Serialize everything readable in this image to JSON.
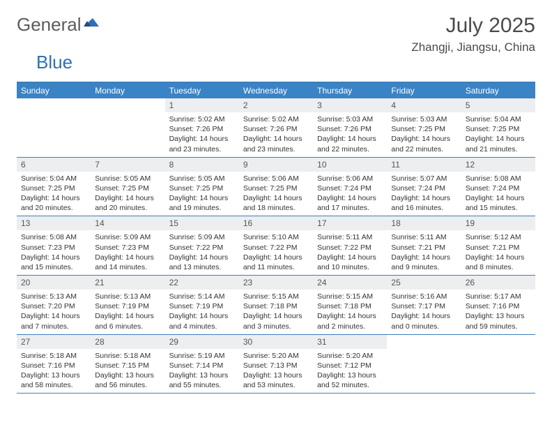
{
  "logo": {
    "word1": "General",
    "word2": "Blue"
  },
  "title": "July 2025",
  "location": "Zhangji, Jiangsu, China",
  "colors": {
    "header_bg": "#3a83c5",
    "header_text": "#ffffff",
    "border": "#3a7fbd",
    "daynum_bg": "#eceef0",
    "text": "#333333",
    "logo_gray": "#5c5c5c",
    "logo_blue": "#2f6fb3"
  },
  "days_of_week": [
    "Sunday",
    "Monday",
    "Tuesday",
    "Wednesday",
    "Thursday",
    "Friday",
    "Saturday"
  ],
  "weeks": [
    [
      {
        "n": "",
        "empty": true
      },
      {
        "n": "",
        "empty": true
      },
      {
        "n": "1",
        "sr": "5:02 AM",
        "ss": "7:26 PM",
        "dl": "14 hours and 23 minutes."
      },
      {
        "n": "2",
        "sr": "5:02 AM",
        "ss": "7:26 PM",
        "dl": "14 hours and 23 minutes."
      },
      {
        "n": "3",
        "sr": "5:03 AM",
        "ss": "7:26 PM",
        "dl": "14 hours and 22 minutes."
      },
      {
        "n": "4",
        "sr": "5:03 AM",
        "ss": "7:25 PM",
        "dl": "14 hours and 22 minutes."
      },
      {
        "n": "5",
        "sr": "5:04 AM",
        "ss": "7:25 PM",
        "dl": "14 hours and 21 minutes."
      }
    ],
    [
      {
        "n": "6",
        "sr": "5:04 AM",
        "ss": "7:25 PM",
        "dl": "14 hours and 20 minutes."
      },
      {
        "n": "7",
        "sr": "5:05 AM",
        "ss": "7:25 PM",
        "dl": "14 hours and 20 minutes."
      },
      {
        "n": "8",
        "sr": "5:05 AM",
        "ss": "7:25 PM",
        "dl": "14 hours and 19 minutes."
      },
      {
        "n": "9",
        "sr": "5:06 AM",
        "ss": "7:25 PM",
        "dl": "14 hours and 18 minutes."
      },
      {
        "n": "10",
        "sr": "5:06 AM",
        "ss": "7:24 PM",
        "dl": "14 hours and 17 minutes."
      },
      {
        "n": "11",
        "sr": "5:07 AM",
        "ss": "7:24 PM",
        "dl": "14 hours and 16 minutes."
      },
      {
        "n": "12",
        "sr": "5:08 AM",
        "ss": "7:24 PM",
        "dl": "14 hours and 15 minutes."
      }
    ],
    [
      {
        "n": "13",
        "sr": "5:08 AM",
        "ss": "7:23 PM",
        "dl": "14 hours and 15 minutes."
      },
      {
        "n": "14",
        "sr": "5:09 AM",
        "ss": "7:23 PM",
        "dl": "14 hours and 14 minutes."
      },
      {
        "n": "15",
        "sr": "5:09 AM",
        "ss": "7:22 PM",
        "dl": "14 hours and 13 minutes."
      },
      {
        "n": "16",
        "sr": "5:10 AM",
        "ss": "7:22 PM",
        "dl": "14 hours and 11 minutes."
      },
      {
        "n": "17",
        "sr": "5:11 AM",
        "ss": "7:22 PM",
        "dl": "14 hours and 10 minutes."
      },
      {
        "n": "18",
        "sr": "5:11 AM",
        "ss": "7:21 PM",
        "dl": "14 hours and 9 minutes."
      },
      {
        "n": "19",
        "sr": "5:12 AM",
        "ss": "7:21 PM",
        "dl": "14 hours and 8 minutes."
      }
    ],
    [
      {
        "n": "20",
        "sr": "5:13 AM",
        "ss": "7:20 PM",
        "dl": "14 hours and 7 minutes."
      },
      {
        "n": "21",
        "sr": "5:13 AM",
        "ss": "7:19 PM",
        "dl": "14 hours and 6 minutes."
      },
      {
        "n": "22",
        "sr": "5:14 AM",
        "ss": "7:19 PM",
        "dl": "14 hours and 4 minutes."
      },
      {
        "n": "23",
        "sr": "5:15 AM",
        "ss": "7:18 PM",
        "dl": "14 hours and 3 minutes."
      },
      {
        "n": "24",
        "sr": "5:15 AM",
        "ss": "7:18 PM",
        "dl": "14 hours and 2 minutes."
      },
      {
        "n": "25",
        "sr": "5:16 AM",
        "ss": "7:17 PM",
        "dl": "14 hours and 0 minutes."
      },
      {
        "n": "26",
        "sr": "5:17 AM",
        "ss": "7:16 PM",
        "dl": "13 hours and 59 minutes."
      }
    ],
    [
      {
        "n": "27",
        "sr": "5:18 AM",
        "ss": "7:16 PM",
        "dl": "13 hours and 58 minutes."
      },
      {
        "n": "28",
        "sr": "5:18 AM",
        "ss": "7:15 PM",
        "dl": "13 hours and 56 minutes."
      },
      {
        "n": "29",
        "sr": "5:19 AM",
        "ss": "7:14 PM",
        "dl": "13 hours and 55 minutes."
      },
      {
        "n": "30",
        "sr": "5:20 AM",
        "ss": "7:13 PM",
        "dl": "13 hours and 53 minutes."
      },
      {
        "n": "31",
        "sr": "5:20 AM",
        "ss": "7:12 PM",
        "dl": "13 hours and 52 minutes."
      },
      {
        "n": "",
        "empty": true
      },
      {
        "n": "",
        "empty": true
      }
    ]
  ],
  "labels": {
    "sunrise": "Sunrise: ",
    "sunset": "Sunset: ",
    "daylight": "Daylight: "
  }
}
